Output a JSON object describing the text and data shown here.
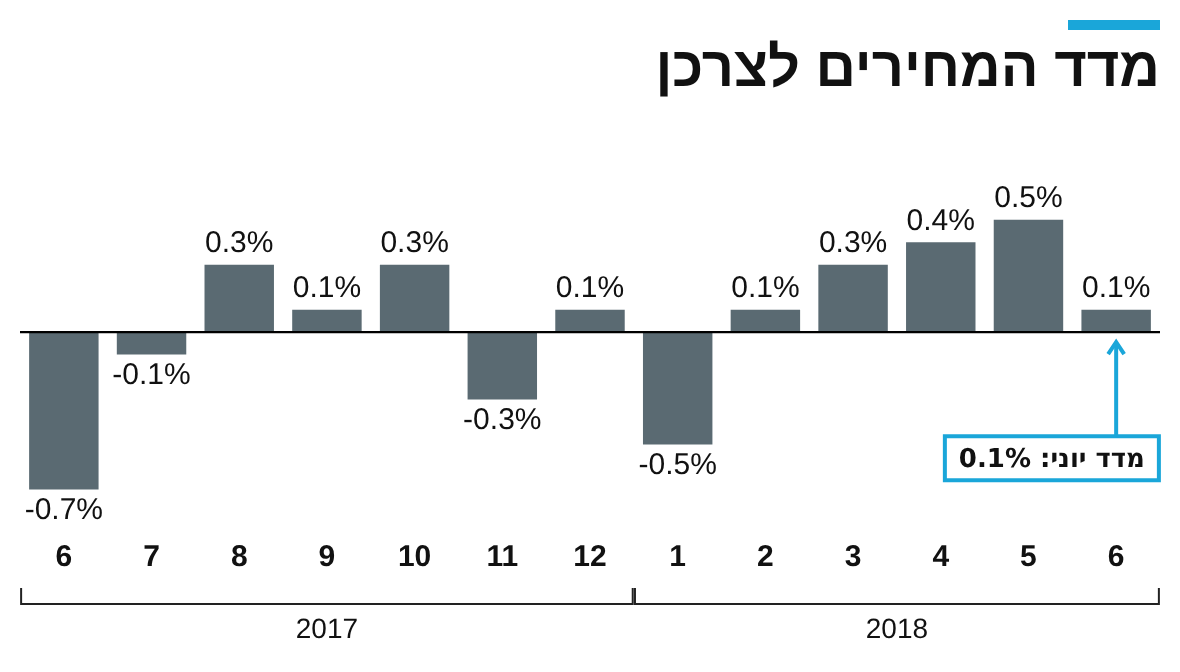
{
  "chart_data": {
    "type": "bar",
    "title": "מדד המחירים לצרכן",
    "categories": [
      "6",
      "7",
      "8",
      "9",
      "10",
      "11",
      "12",
      "1",
      "2",
      "3",
      "4",
      "5",
      "6"
    ],
    "values": [
      -0.7,
      -0.1,
      0.3,
      0.1,
      0.3,
      -0.3,
      0.1,
      -0.5,
      0.1,
      0.3,
      0.4,
      0.5,
      0.1
    ],
    "value_labels": [
      "-0.7%",
      "-0.1%",
      "0.3%",
      "0.1%",
      "0.3%",
      "-0.3%",
      "0.1%",
      "-0.5%",
      "0.1%",
      "0.3%",
      "0.4%",
      "0.5%",
      "0.1%"
    ],
    "color": "#5a6a72",
    "annotations": [
      "2017",
      "2018",
      "מדד יוני: 0.1%"
    ],
    "grid": false,
    "legend": false
  }
}
